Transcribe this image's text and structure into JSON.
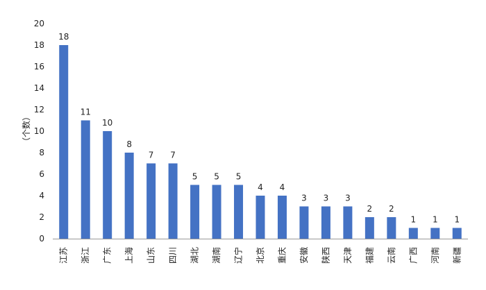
{
  "chart_data": {
    "type": "bar",
    "categories": [
      "江苏",
      "浙江",
      "广东",
      "上海",
      "山东",
      "四川",
      "湖北",
      "湖南",
      "辽宁",
      "北京",
      "重庆",
      "安徽",
      "陕西",
      "天津",
      "福建",
      "云南",
      "广西",
      "河南",
      "新疆"
    ],
    "values": [
      18,
      11,
      10,
      8,
      7,
      7,
      5,
      5,
      5,
      4,
      4,
      3,
      3,
      3,
      2,
      2,
      1,
      1,
      1
    ],
    "title": "",
    "xlabel": "",
    "ylabel": "（个数）",
    "ylim": [
      0,
      20
    ],
    "yticks": [
      0,
      2,
      4,
      6,
      8,
      10,
      12,
      14,
      16,
      18,
      20
    ],
    "grid": false,
    "legend": "none",
    "data_labels": true,
    "bar_color": "#4472C4",
    "axis_color": "#999999"
  }
}
